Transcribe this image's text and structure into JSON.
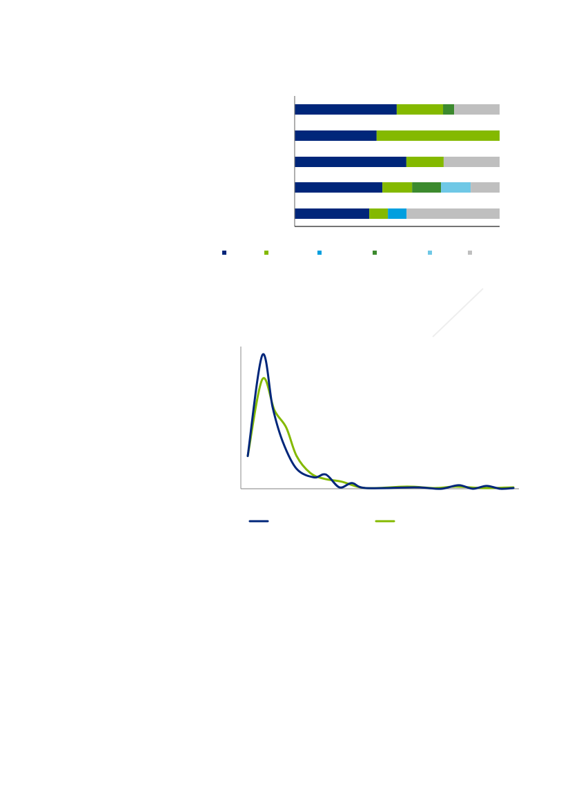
{
  "chart_data": [
    {
      "type": "bar",
      "orientation": "horizontal",
      "stacked": true,
      "xlim": [
        0,
        100
      ],
      "grid": false,
      "legend_placement": "bottom",
      "series_colors": [
        "#00267a",
        "#84b900",
        "#009fdf",
        "#3c8a2e",
        "#6fc8e6",
        "#bfbfbf"
      ],
      "rows": [
        [
          49.8,
          22.6,
          0,
          5.4,
          0,
          22.2
        ],
        [
          40.0,
          60.0,
          0,
          0,
          0,
          0
        ],
        [
          54.5,
          18.2,
          0,
          0,
          0,
          27.3
        ],
        [
          42.8,
          14.5,
          0,
          14.1,
          14.5,
          14.1
        ],
        [
          36.4,
          9.1,
          9.1,
          0,
          0,
          45.4
        ]
      ]
    },
    {
      "type": "line",
      "xlim": [
        0,
        100
      ],
      "ylim": [
        0,
        100
      ],
      "grid": false,
      "legend_placement": "bottom",
      "series": [
        {
          "color": "#00267a",
          "x": [
            0,
            5.5,
            9.4,
            13.2,
            18.4,
            24.9,
            29.4,
            34.5,
            39.2,
            44.4,
            62.6,
            67.8,
            73.0,
            79.5,
            84.7,
            89.9,
            95.1,
            100
          ],
          "y": [
            23,
            94,
            57,
            33,
            14,
            8,
            10,
            1,
            4,
            0.5,
            1,
            0.5,
            0,
            2.5,
            0,
            2,
            0,
            0.5
          ]
        },
        {
          "color": "#84b900",
          "x": [
            0,
            5.5,
            10.1,
            14.5,
            18.4,
            23.6,
            28.8,
            35.3,
            44.4,
            60.0,
            70.4,
            78.2,
            88.6,
            100
          ],
          "y": [
            23,
            77,
            55,
            43,
            23,
            11,
            7,
            5,
            0.5,
            1.5,
            0.5,
            1.5,
            0.5,
            1
          ]
        }
      ]
    }
  ]
}
